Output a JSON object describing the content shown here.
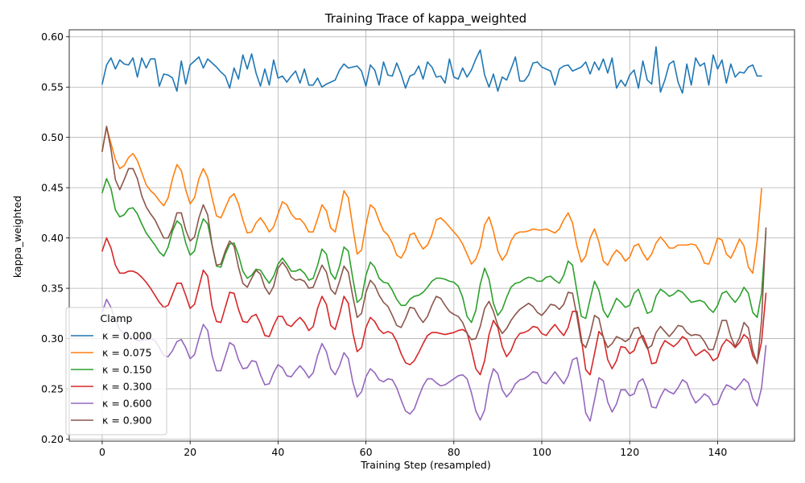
{
  "chart_data": {
    "type": "line",
    "title": "Training Trace of kappa_weighted",
    "xlabel": "Training Step (resampled)",
    "ylabel": "kappa_weighted",
    "xlim": [
      -7.5,
      157.5
    ],
    "ylim": [
      0.198,
      0.607
    ],
    "xticks": [
      0,
      20,
      40,
      60,
      80,
      100,
      120,
      140
    ],
    "yticks": [
      0.2,
      0.25,
      0.3,
      0.35,
      0.4,
      0.45,
      0.5,
      0.55,
      0.6
    ],
    "ytick_labels": [
      "0.20",
      "0.25",
      "0.30",
      "0.35",
      "0.40",
      "0.45",
      "0.50",
      "0.55",
      "0.60"
    ],
    "grid": true,
    "legend_title": "Clamp",
    "legend_position": "lower-left",
    "x_step": 1,
    "series": [
      {
        "name": "κ = 0.000",
        "color": "#1f77b4",
        "values": [
          0.553,
          0.572,
          0.579,
          0.568,
          0.577,
          0.573,
          0.572,
          0.579,
          0.56,
          0.579,
          0.569,
          0.578,
          0.578,
          0.551,
          0.563,
          0.562,
          0.559,
          0.546,
          0.576,
          0.553,
          0.572,
          0.576,
          0.58,
          0.569,
          0.578,
          0.574,
          0.57,
          0.565,
          0.561,
          0.549,
          0.569,
          0.558,
          0.582,
          0.568,
          0.583,
          0.564,
          0.551,
          0.568,
          0.552,
          0.577,
          0.559,
          0.561,
          0.555,
          0.561,
          0.566,
          0.554,
          0.568,
          0.552,
          0.552,
          0.559,
          0.55,
          0.553,
          0.555,
          0.557,
          0.567,
          0.573,
          0.569,
          0.57,
          0.571,
          0.566,
          0.551,
          0.572,
          0.567,
          0.552,
          0.575,
          0.562,
          0.561,
          0.574,
          0.563,
          0.549,
          0.561,
          0.563,
          0.571,
          0.558,
          0.575,
          0.57,
          0.56,
          0.561,
          0.554,
          0.578,
          0.56,
          0.558,
          0.569,
          0.56,
          0.567,
          0.578,
          0.587,
          0.562,
          0.55,
          0.563,
          0.546,
          0.56,
          0.557,
          0.568,
          0.58,
          0.556,
          0.556,
          0.562,
          0.574,
          0.575,
          0.57,
          0.568,
          0.566,
          0.552,
          0.568,
          0.571,
          0.572,
          0.566,
          0.568,
          0.57,
          0.575,
          0.563,
          0.575,
          0.567,
          0.578,
          0.564,
          0.579,
          0.549,
          0.557,
          0.551,
          0.562,
          0.567,
          0.549,
          0.576,
          0.557,
          0.553,
          0.59,
          0.545,
          0.557,
          0.573,
          0.576,
          0.555,
          0.544,
          0.573,
          0.552,
          0.579,
          0.571,
          0.574,
          0.552,
          0.582,
          0.568,
          0.577,
          0.554,
          0.573,
          0.56,
          0.565,
          0.564,
          0.57,
          0.572,
          0.561,
          0.561
        ]
      },
      {
        "name": "κ = 0.075",
        "color": "#ff7f0e",
        "values": [
          0.487,
          0.51,
          0.494,
          0.478,
          0.469,
          0.472,
          0.48,
          0.484,
          0.477,
          0.465,
          0.453,
          0.447,
          0.443,
          0.437,
          0.432,
          0.44,
          0.459,
          0.473,
          0.467,
          0.448,
          0.434,
          0.44,
          0.459,
          0.469,
          0.46,
          0.44,
          0.422,
          0.42,
          0.43,
          0.44,
          0.444,
          0.434,
          0.418,
          0.405,
          0.406,
          0.415,
          0.42,
          0.414,
          0.406,
          0.411,
          0.424,
          0.436,
          0.433,
          0.424,
          0.419,
          0.419,
          0.414,
          0.406,
          0.406,
          0.419,
          0.433,
          0.427,
          0.41,
          0.406,
          0.425,
          0.447,
          0.44,
          0.411,
          0.384,
          0.388,
          0.413,
          0.433,
          0.429,
          0.417,
          0.407,
          0.403,
          0.395,
          0.383,
          0.38,
          0.388,
          0.403,
          0.405,
          0.396,
          0.389,
          0.393,
          0.403,
          0.418,
          0.42,
          0.416,
          0.411,
          0.406,
          0.401,
          0.394,
          0.384,
          0.374,
          0.379,
          0.391,
          0.413,
          0.421,
          0.407,
          0.387,
          0.378,
          0.384,
          0.397,
          0.404,
          0.406,
          0.406,
          0.407,
          0.409,
          0.408,
          0.408,
          0.409,
          0.407,
          0.405,
          0.409,
          0.418,
          0.425,
          0.415,
          0.392,
          0.376,
          0.382,
          0.4,
          0.409,
          0.396,
          0.377,
          0.373,
          0.382,
          0.388,
          0.384,
          0.377,
          0.381,
          0.392,
          0.394,
          0.385,
          0.378,
          0.384,
          0.395,
          0.401,
          0.396,
          0.39,
          0.39,
          0.393,
          0.393,
          0.393,
          0.394,
          0.393,
          0.386,
          0.375,
          0.374,
          0.386,
          0.4,
          0.398,
          0.384,
          0.38,
          0.389,
          0.399,
          0.392,
          0.371,
          0.365,
          0.397,
          0.449
        ]
      },
      {
        "name": "κ = 0.150",
        "color": "#2ca02c",
        "values": [
          0.445,
          0.459,
          0.449,
          0.428,
          0.421,
          0.423,
          0.429,
          0.43,
          0.424,
          0.414,
          0.405,
          0.399,
          0.393,
          0.386,
          0.382,
          0.391,
          0.407,
          0.417,
          0.413,
          0.395,
          0.383,
          0.387,
          0.406,
          0.419,
          0.414,
          0.393,
          0.372,
          0.371,
          0.384,
          0.394,
          0.395,
          0.383,
          0.367,
          0.36,
          0.363,
          0.369,
          0.368,
          0.361,
          0.355,
          0.362,
          0.374,
          0.38,
          0.374,
          0.367,
          0.367,
          0.369,
          0.365,
          0.358,
          0.36,
          0.373,
          0.389,
          0.384,
          0.365,
          0.359,
          0.372,
          0.391,
          0.387,
          0.36,
          0.336,
          0.34,
          0.363,
          0.376,
          0.371,
          0.36,
          0.356,
          0.355,
          0.348,
          0.339,
          0.333,
          0.333,
          0.339,
          0.342,
          0.343,
          0.346,
          0.351,
          0.357,
          0.36,
          0.36,
          0.359,
          0.357,
          0.356,
          0.352,
          0.341,
          0.322,
          0.316,
          0.328,
          0.354,
          0.37,
          0.359,
          0.335,
          0.323,
          0.329,
          0.341,
          0.351,
          0.355,
          0.356,
          0.359,
          0.361,
          0.36,
          0.357,
          0.357,
          0.361,
          0.362,
          0.358,
          0.355,
          0.363,
          0.377,
          0.373,
          0.347,
          0.322,
          0.32,
          0.339,
          0.357,
          0.348,
          0.328,
          0.321,
          0.33,
          0.34,
          0.336,
          0.331,
          0.333,
          0.345,
          0.349,
          0.337,
          0.325,
          0.327,
          0.342,
          0.349,
          0.346,
          0.342,
          0.344,
          0.348,
          0.346,
          0.341,
          0.336,
          0.337,
          0.338,
          0.336,
          0.33,
          0.326,
          0.333,
          0.345,
          0.347,
          0.341,
          0.336,
          0.342,
          0.351,
          0.345,
          0.326,
          0.321,
          0.345,
          0.406
        ]
      },
      {
        "name": "κ = 0.300",
        "color": "#d62728",
        "values": [
          0.387,
          0.4,
          0.39,
          0.373,
          0.365,
          0.365,
          0.367,
          0.367,
          0.365,
          0.361,
          0.356,
          0.35,
          0.343,
          0.336,
          0.331,
          0.333,
          0.344,
          0.355,
          0.355,
          0.343,
          0.33,
          0.334,
          0.351,
          0.368,
          0.362,
          0.332,
          0.317,
          0.316,
          0.331,
          0.346,
          0.345,
          0.329,
          0.317,
          0.316,
          0.322,
          0.324,
          0.315,
          0.303,
          0.302,
          0.313,
          0.322,
          0.322,
          0.314,
          0.312,
          0.317,
          0.321,
          0.316,
          0.308,
          0.312,
          0.33,
          0.342,
          0.334,
          0.313,
          0.309,
          0.324,
          0.342,
          0.335,
          0.306,
          0.287,
          0.291,
          0.311,
          0.321,
          0.317,
          0.309,
          0.305,
          0.307,
          0.305,
          0.297,
          0.285,
          0.276,
          0.274,
          0.278,
          0.286,
          0.295,
          0.303,
          0.306,
          0.306,
          0.305,
          0.304,
          0.305,
          0.306,
          0.308,
          0.309,
          0.306,
          0.289,
          0.27,
          0.264,
          0.278,
          0.304,
          0.318,
          0.311,
          0.292,
          0.282,
          0.288,
          0.299,
          0.305,
          0.306,
          0.308,
          0.312,
          0.311,
          0.305,
          0.303,
          0.309,
          0.314,
          0.308,
          0.303,
          0.311,
          0.327,
          0.327,
          0.3,
          0.269,
          0.264,
          0.285,
          0.307,
          0.302,
          0.279,
          0.27,
          0.278,
          0.292,
          0.291,
          0.285,
          0.288,
          0.3,
          0.303,
          0.292,
          0.275,
          0.276,
          0.29,
          0.298,
          0.295,
          0.292,
          0.296,
          0.302,
          0.299,
          0.289,
          0.283,
          0.286,
          0.289,
          0.285,
          0.278,
          0.281,
          0.293,
          0.299,
          0.296,
          0.291,
          0.296,
          0.304,
          0.3,
          0.283,
          0.276,
          0.297,
          0.345
        ]
      },
      {
        "name": "κ = 0.600",
        "color": "#9467bd",
        "values": [
          0.326,
          0.339,
          0.331,
          0.318,
          0.309,
          0.305,
          0.303,
          0.3,
          0.298,
          0.298,
          0.299,
          0.3,
          0.298,
          0.291,
          0.283,
          0.282,
          0.288,
          0.297,
          0.299,
          0.291,
          0.28,
          0.284,
          0.3,
          0.314,
          0.308,
          0.283,
          0.268,
          0.268,
          0.282,
          0.296,
          0.293,
          0.279,
          0.27,
          0.271,
          0.278,
          0.277,
          0.264,
          0.254,
          0.255,
          0.266,
          0.274,
          0.271,
          0.263,
          0.262,
          0.268,
          0.273,
          0.268,
          0.261,
          0.266,
          0.283,
          0.295,
          0.287,
          0.27,
          0.264,
          0.273,
          0.286,
          0.28,
          0.257,
          0.242,
          0.247,
          0.262,
          0.27,
          0.266,
          0.259,
          0.257,
          0.26,
          0.259,
          0.251,
          0.239,
          0.228,
          0.225,
          0.23,
          0.242,
          0.253,
          0.26,
          0.26,
          0.256,
          0.253,
          0.254,
          0.257,
          0.26,
          0.263,
          0.264,
          0.26,
          0.246,
          0.228,
          0.219,
          0.229,
          0.255,
          0.27,
          0.265,
          0.249,
          0.242,
          0.247,
          0.255,
          0.259,
          0.26,
          0.263,
          0.267,
          0.266,
          0.257,
          0.255,
          0.261,
          0.267,
          0.261,
          0.255,
          0.263,
          0.279,
          0.281,
          0.257,
          0.226,
          0.218,
          0.239,
          0.261,
          0.258,
          0.237,
          0.227,
          0.235,
          0.249,
          0.249,
          0.243,
          0.245,
          0.257,
          0.26,
          0.249,
          0.232,
          0.231,
          0.242,
          0.25,
          0.247,
          0.245,
          0.251,
          0.259,
          0.256,
          0.244,
          0.236,
          0.24,
          0.245,
          0.242,
          0.234,
          0.235,
          0.246,
          0.254,
          0.252,
          0.249,
          0.254,
          0.26,
          0.256,
          0.24,
          0.233,
          0.251,
          0.293
        ]
      },
      {
        "name": "κ = 0.900",
        "color": "#8c564b",
        "values": [
          0.486,
          0.511,
          0.488,
          0.458,
          0.448,
          0.458,
          0.469,
          0.469,
          0.459,
          0.442,
          0.431,
          0.424,
          0.418,
          0.409,
          0.4,
          0.4,
          0.41,
          0.425,
          0.425,
          0.408,
          0.397,
          0.401,
          0.42,
          0.433,
          0.423,
          0.393,
          0.373,
          0.374,
          0.387,
          0.397,
          0.392,
          0.371,
          0.355,
          0.351,
          0.36,
          0.368,
          0.364,
          0.351,
          0.344,
          0.352,
          0.37,
          0.376,
          0.37,
          0.361,
          0.358,
          0.359,
          0.357,
          0.35,
          0.351,
          0.362,
          0.373,
          0.366,
          0.349,
          0.344,
          0.357,
          0.372,
          0.366,
          0.342,
          0.321,
          0.325,
          0.346,
          0.358,
          0.353,
          0.343,
          0.336,
          0.332,
          0.323,
          0.313,
          0.311,
          0.32,
          0.331,
          0.33,
          0.322,
          0.316,
          0.322,
          0.333,
          0.342,
          0.34,
          0.333,
          0.327,
          0.324,
          0.322,
          0.316,
          0.305,
          0.299,
          0.3,
          0.312,
          0.33,
          0.337,
          0.327,
          0.313,
          0.305,
          0.31,
          0.318,
          0.324,
          0.329,
          0.332,
          0.335,
          0.332,
          0.326,
          0.323,
          0.328,
          0.334,
          0.333,
          0.329,
          0.334,
          0.346,
          0.345,
          0.322,
          0.296,
          0.291,
          0.304,
          0.323,
          0.32,
          0.301,
          0.291,
          0.295,
          0.302,
          0.3,
          0.297,
          0.3,
          0.31,
          0.311,
          0.299,
          0.29,
          0.293,
          0.306,
          0.312,
          0.307,
          0.302,
          0.307,
          0.313,
          0.312,
          0.306,
          0.303,
          0.304,
          0.303,
          0.297,
          0.289,
          0.289,
          0.303,
          0.318,
          0.318,
          0.302,
          0.292,
          0.301,
          0.316,
          0.311,
          0.288,
          0.275,
          0.318,
          0.41
        ]
      }
    ]
  }
}
